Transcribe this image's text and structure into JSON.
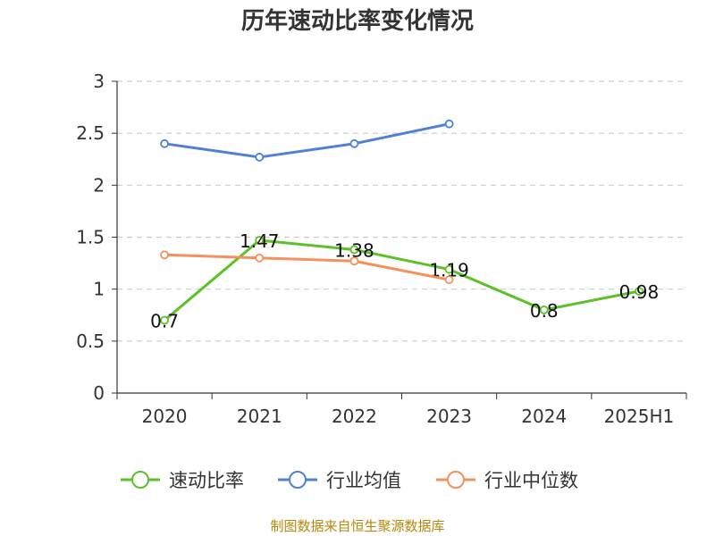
{
  "chart_data": {
    "type": "line",
    "title": "历年速动比率变化情况",
    "categories": [
      "2020",
      "2021",
      "2022",
      "2023",
      "2024",
      "2025H1"
    ],
    "ylim": [
      0,
      3
    ],
    "yticks": [
      "0",
      "0.5",
      "1",
      "1.5",
      "2",
      "2.5",
      "3"
    ],
    "grid": true,
    "legend_position": "bottom",
    "series": [
      {
        "name": "速动比率",
        "color": "#5cc126",
        "values": [
          0.7,
          1.47,
          1.38,
          1.19,
          0.8,
          0.98
        ],
        "labels": [
          "0.7",
          "1.47",
          "1.38",
          "1.19",
          "0.8",
          "0.98"
        ]
      },
      {
        "name": "行业均值",
        "color": "#4d80d6",
        "values": [
          2.4,
          2.27,
          2.4,
          2.59,
          null,
          null
        ]
      },
      {
        "name": "行业中位数",
        "color": "#f5905a",
        "values": [
          1.33,
          1.3,
          1.27,
          1.09,
          null,
          null
        ]
      }
    ]
  },
  "source": "制图数据来自恒生聚源数据库"
}
